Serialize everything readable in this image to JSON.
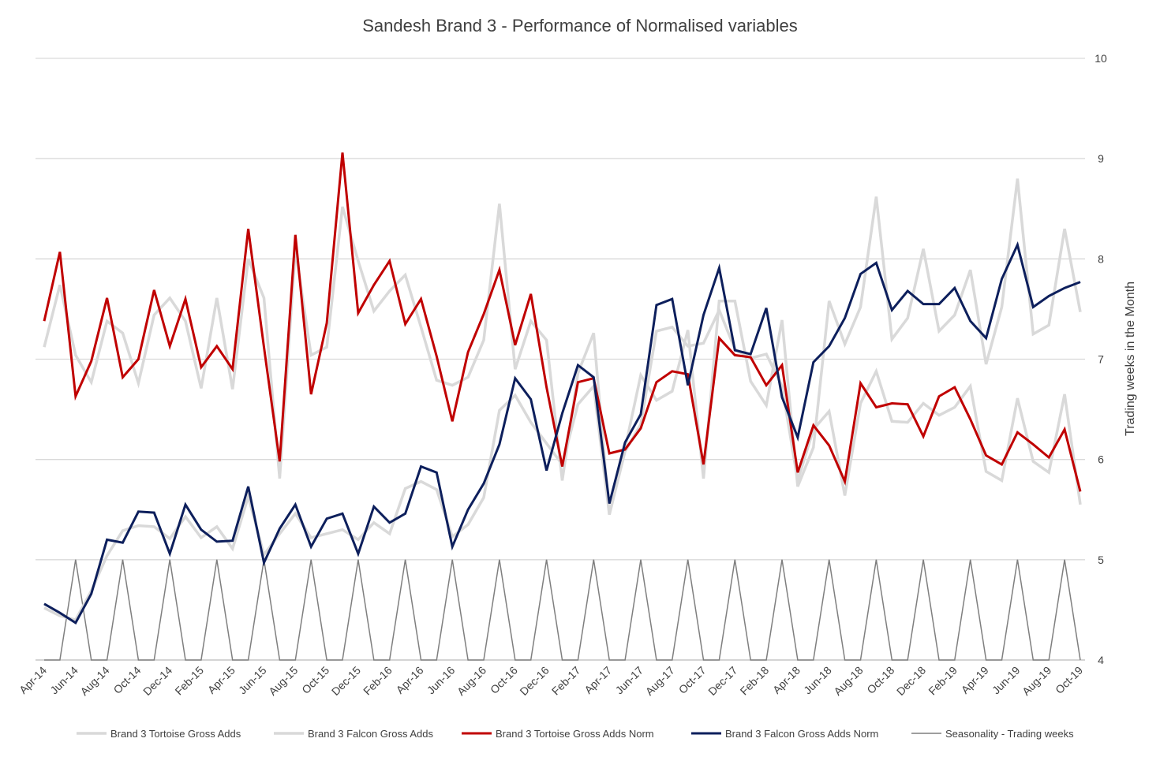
{
  "chart_data": {
    "type": "line",
    "title": "Sandesh Brand 3 - Performance of Normalised variables",
    "ylabel_right": "Trading weeks in the Month",
    "y_right_ticks": [
      "10",
      "9",
      "8",
      "7",
      "6",
      "5",
      "4"
    ],
    "y_right_range": [
      4,
      10
    ],
    "grid": true,
    "legend_position": "bottom",
    "x": [
      "Apr-14",
      "May-14",
      "Jun-14",
      "Jul-14",
      "Aug-14",
      "Sep-14",
      "Oct-14",
      "Nov-14",
      "Dec-14",
      "Jan-15",
      "Feb-15",
      "Mar-15",
      "Apr-15",
      "May-15",
      "Jun-15",
      "Jul-15",
      "Aug-15",
      "Sep-15",
      "Oct-15",
      "Nov-15",
      "Dec-15",
      "Jan-16",
      "Feb-16",
      "Mar-16",
      "Apr-16",
      "May-16",
      "Jun-16",
      "Jul-16",
      "Aug-16",
      "Sep-16",
      "Oct-16",
      "Nov-16",
      "Dec-16",
      "Jan-17",
      "Feb-17",
      "Mar-17",
      "Apr-17",
      "May-17",
      "Jun-17",
      "Jul-17",
      "Aug-17",
      "Sep-17",
      "Oct-17",
      "Nov-17",
      "Dec-17",
      "Jan-18",
      "Feb-18",
      "Mar-18",
      "Apr-18",
      "May-18",
      "Jun-18",
      "Jul-18",
      "Aug-18",
      "Sep-18",
      "Oct-18",
      "Nov-18",
      "Dec-18",
      "Jan-19",
      "Feb-19",
      "Mar-19",
      "Apr-19",
      "May-19",
      "Jun-19",
      "Jul-19",
      "Aug-19",
      "Sep-19",
      "Oct-19"
    ],
    "x_tick_labels": [
      "Apr-14",
      "Jun-14",
      "Aug-14",
      "Oct-14",
      "Dec-14",
      "Feb-15",
      "Apr-15",
      "Jun-15",
      "Aug-15",
      "Oct-15",
      "Dec-15",
      "Feb-16",
      "Apr-16",
      "Jun-16",
      "Aug-16",
      "Oct-16",
      "Dec-16",
      "Feb-17",
      "Apr-17",
      "Jun-17",
      "Aug-17",
      "Oct-17",
      "Dec-17",
      "Feb-18",
      "Apr-18",
      "Jun-18",
      "Aug-18",
      "Oct-18",
      "Dec-18",
      "Feb-19",
      "Apr-19",
      "Jun-19",
      "Aug-19",
      "Oct-19"
    ],
    "series": [
      {
        "name": "Brand 3 Tortoise Gross Adds",
        "color": "#d9d9d9",
        "width": 3.5,
        "axis": "left",
        "values": [
          7.12,
          7.74,
          7.04,
          6.77,
          7.38,
          7.26,
          6.76,
          7.44,
          7.61,
          7.38,
          6.71,
          7.61,
          6.7,
          8.0,
          7.61,
          5.81,
          8.1,
          7.04,
          7.12,
          8.52,
          7.98,
          7.48,
          7.68,
          7.84,
          7.32,
          6.79,
          6.74,
          6.82,
          7.19,
          8.55,
          6.9,
          7.38,
          7.19,
          5.79,
          6.86,
          7.26,
          5.45,
          6.11,
          6.84,
          6.59,
          6.68,
          7.29,
          5.81,
          7.58,
          7.58,
          6.78,
          6.54,
          7.39,
          5.73,
          6.12,
          7.58,
          7.15,
          7.52,
          8.62,
          7.2,
          7.41,
          8.1,
          7.28,
          7.44,
          7.89,
          6.95,
          7.52,
          8.8,
          7.25,
          7.34,
          8.3,
          7.47
        ]
      },
      {
        "name": "Brand 3 Falcon Gross Adds",
        "color": "#d9d9d9",
        "width": 3.5,
        "axis": "left",
        "values": [
          4.52,
          4.44,
          4.4,
          4.69,
          5.04,
          5.29,
          5.34,
          5.33,
          5.21,
          5.43,
          5.22,
          5.33,
          5.11,
          5.63,
          5.05,
          5.26,
          5.46,
          5.22,
          5.26,
          5.3,
          5.2,
          5.37,
          5.26,
          5.71,
          5.78,
          5.7,
          5.23,
          5.35,
          5.62,
          6.49,
          6.64,
          6.37,
          6.16,
          5.95,
          6.55,
          6.73,
          5.45,
          6.08,
          6.35,
          7.28,
          7.32,
          7.13,
          7.16,
          7.49,
          7.1,
          7.01,
          7.05,
          6.73,
          5.79,
          6.3,
          6.48,
          5.64,
          6.56,
          6.88,
          6.38,
          6.37,
          6.56,
          6.44,
          6.52,
          6.73,
          5.88,
          5.79,
          6.61,
          5.98,
          5.87,
          6.65,
          5.55
        ]
      },
      {
        "name": "Brand 3 Tortoise Gross Adds Norm",
        "color": "#c00000",
        "width": 3,
        "axis": "left",
        "values": [
          7.38,
          8.07,
          6.63,
          6.98,
          7.61,
          6.82,
          7.0,
          7.69,
          7.13,
          7.6,
          6.92,
          7.13,
          6.9,
          8.3,
          7.12,
          5.98,
          8.24,
          6.65,
          7.36,
          9.06,
          7.46,
          7.74,
          7.98,
          7.35,
          7.6,
          7.03,
          6.38,
          7.07,
          7.45,
          7.89,
          7.14,
          7.65,
          6.72,
          5.93,
          6.77,
          6.81,
          6.06,
          6.1,
          6.31,
          6.77,
          6.88,
          6.85,
          5.95,
          7.21,
          7.04,
          7.02,
          6.74,
          6.94,
          5.87,
          6.34,
          6.14,
          5.78,
          6.76,
          6.52,
          6.56,
          6.55,
          6.23,
          6.63,
          6.72,
          6.4,
          6.04,
          5.95,
          6.27,
          6.15,
          6.02,
          6.3,
          5.68
        ]
      },
      {
        "name": "Brand 3 Falcon Gross Adds Norm",
        "color": "#0d1f5c",
        "width": 3,
        "axis": "left",
        "values": [
          4.56,
          4.47,
          4.37,
          4.66,
          5.2,
          5.17,
          5.48,
          5.47,
          5.06,
          5.55,
          5.3,
          5.18,
          5.19,
          5.73,
          4.97,
          5.31,
          5.55,
          5.13,
          5.41,
          5.46,
          5.06,
          5.53,
          5.37,
          5.46,
          5.93,
          5.87,
          5.13,
          5.5,
          5.76,
          6.15,
          6.81,
          6.6,
          5.89,
          6.46,
          6.94,
          6.82,
          5.56,
          6.17,
          6.45,
          7.54,
          7.6,
          6.74,
          7.44,
          7.91,
          7.09,
          7.05,
          7.51,
          6.62,
          6.22,
          6.97,
          7.13,
          7.41,
          7.85,
          7.96,
          7.49,
          7.68,
          7.55,
          7.55,
          7.71,
          7.38,
          7.21,
          7.8,
          8.14,
          7.52,
          7.63,
          7.71,
          7.77
        ]
      },
      {
        "name": "Seasonality - Trading weeks",
        "color": "#7f7f7f",
        "width": 1.5,
        "axis": "right",
        "values": [
          4,
          4,
          5,
          4,
          4,
          5,
          4,
          4,
          5,
          4,
          4,
          5,
          4,
          4,
          5,
          4,
          4,
          5,
          4,
          4,
          5,
          4,
          4,
          5,
          4,
          4,
          5,
          4,
          4,
          5,
          4,
          4,
          5,
          4,
          4,
          5,
          4,
          4,
          5,
          4,
          4,
          5,
          4,
          4,
          5,
          4,
          4,
          5,
          4,
          4,
          5,
          4,
          4,
          5,
          4,
          4,
          5,
          4,
          4,
          5,
          4,
          4,
          5,
          4,
          4,
          5,
          4
        ]
      }
    ]
  }
}
